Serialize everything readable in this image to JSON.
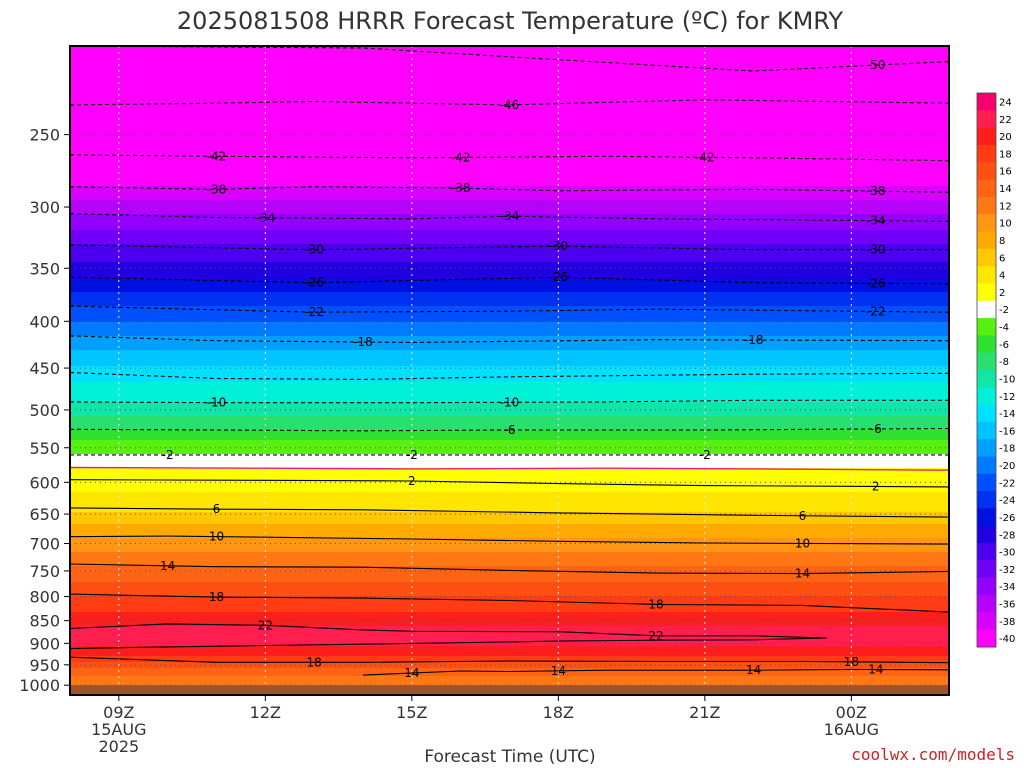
{
  "chart_data": {
    "type": "contour",
    "title": "2025081508 HRRR Forecast Temperature (ºC) for KMRY",
    "xlabel": "Forecast Time (UTC)",
    "x_ticks": [
      {
        "hour": 9,
        "lines": [
          "09Z",
          "15AUG",
          "2025"
        ]
      },
      {
        "hour": 12,
        "lines": [
          "12Z"
        ]
      },
      {
        "hour": 15,
        "lines": [
          "15Z"
        ]
      },
      {
        "hour": 18,
        "lines": [
          "18Z"
        ]
      },
      {
        "hour": 21,
        "lines": [
          "21Z"
        ]
      },
      {
        "hour": 24,
        "lines": [
          "00Z",
          "16AUG"
        ]
      }
    ],
    "xlim_hours": [
      8,
      26
    ],
    "y_ticks": [
      250,
      300,
      350,
      400,
      450,
      500,
      550,
      600,
      650,
      700,
      750,
      800,
      850,
      900,
      950,
      1000
    ],
    "ylim_hpa": [
      200,
      1025
    ],
    "y_scale": "log-pressure",
    "surface_pressure_hpa": 1000,
    "surface_color": "#a0522d",
    "colorbar": {
      "labels": [
        24,
        22,
        20,
        18,
        16,
        14,
        12,
        10,
        8,
        6,
        4,
        2,
        -2,
        -4,
        -6,
        -8,
        -10,
        -12,
        -14,
        -16,
        -18,
        -20,
        -22,
        -24,
        -26,
        -28,
        -30,
        -32,
        -34,
        -36,
        -38,
        -40
      ],
      "colors": [
        "#f5006e",
        "#ff1e50",
        "#ff1e1e",
        "#ff3c14",
        "#ff5014",
        "#ff6414",
        "#ff7814",
        "#ff9614",
        "#ffaa00",
        "#ffc800",
        "#ffe600",
        "#ffff00",
        "#ffffff",
        "#58f010",
        "#30e030",
        "#28e070",
        "#10e6a8",
        "#00f0d8",
        "#00e0ff",
        "#00c4ff",
        "#00a0ff",
        "#007aff",
        "#0050ff",
        "#0030f0",
        "#0010e0",
        "#2000e0",
        "#4c00ee",
        "#7000f8",
        "#9400ff",
        "#b800ff",
        "#d800ff",
        "#ff00ff"
      ]
    },
    "temperature_profile": [
      {
        "p": 200,
        "t": -54
      },
      {
        "p": 215,
        "t": -50
      },
      {
        "p": 232,
        "t": -46
      },
      {
        "p": 263,
        "t": -42
      },
      {
        "p": 285,
        "t": -38
      },
      {
        "p": 305,
        "t": -34
      },
      {
        "p": 330,
        "t": -30
      },
      {
        "p": 360,
        "t": -26
      },
      {
        "p": 385,
        "t": -22
      },
      {
        "p": 415,
        "t": -18
      },
      {
        "p": 455,
        "t": -13
      },
      {
        "p": 490,
        "t": -10
      },
      {
        "p": 525,
        "t": -6
      },
      {
        "p": 548,
        "t": -3
      },
      {
        "p": 560,
        "t": -2
      },
      {
        "p": 580,
        "t": 2
      },
      {
        "p": 590,
        "t": 2
      },
      {
        "p": 625,
        "t": 5
      },
      {
        "p": 645,
        "t": 6
      },
      {
        "p": 690,
        "t": 10
      },
      {
        "p": 740,
        "t": 14
      },
      {
        "p": 800,
        "t": 18
      },
      {
        "p": 860,
        "t": 22
      },
      {
        "p": 895,
        "t": 23
      },
      {
        "p": 920,
        "t": 21
      },
      {
        "p": 945,
        "t": 18
      },
      {
        "p": 965,
        "t": 15
      },
      {
        "p": 985,
        "t": 13
      },
      {
        "p": 1000,
        "t": 12
      }
    ],
    "contours": [
      {
        "label": "-50",
        "style": "dashed",
        "pts": [
          [
            8,
            200
          ],
          [
            14,
            201
          ],
          [
            18,
            207
          ],
          [
            22,
            213
          ],
          [
            26,
            208
          ]
        ],
        "labels_at": [
          24.5
        ]
      },
      {
        "label": "-46",
        "style": "dashed",
        "pts": [
          [
            8,
            232
          ],
          [
            11,
            231
          ],
          [
            13,
            230
          ],
          [
            17,
            232
          ],
          [
            21,
            229
          ],
          [
            26,
            231
          ]
        ],
        "labels_at": [
          17
        ]
      },
      {
        "label": "-42",
        "style": "dashed",
        "pts": [
          [
            8,
            263
          ],
          [
            11,
            264
          ],
          [
            15,
            265
          ],
          [
            19,
            264
          ],
          [
            22,
            265
          ],
          [
            26,
            267
          ]
        ],
        "labels_at": [
          11,
          16,
          21
        ]
      },
      {
        "label": "-38",
        "style": "dashed",
        "pts": [
          [
            8,
            285
          ],
          [
            11,
            287
          ],
          [
            13,
            285
          ],
          [
            16,
            286
          ],
          [
            18,
            288
          ],
          [
            22,
            287
          ],
          [
            26,
            289
          ]
        ],
        "labels_at": [
          11,
          16,
          24.5
        ]
      },
      {
        "label": "-34",
        "style": "dashed",
        "pts": [
          [
            8,
            305
          ],
          [
            11,
            308
          ],
          [
            15,
            309
          ],
          [
            17,
            307
          ],
          [
            20,
            309
          ],
          [
            26,
            311
          ]
        ],
        "labels_at": [
          12,
          17,
          24.5
        ]
      },
      {
        "label": "-30",
        "style": "dashed",
        "pts": [
          [
            8,
            330
          ],
          [
            13,
            334
          ],
          [
            18,
            331
          ],
          [
            22,
            334
          ],
          [
            26,
            334
          ]
        ],
        "labels_at": [
          13,
          18,
          24.5
        ]
      },
      {
        "label": "-26",
        "style": "dashed",
        "pts": [
          [
            8,
            358
          ],
          [
            13,
            363
          ],
          [
            18,
            358
          ],
          [
            22,
            363
          ],
          [
            26,
            364
          ]
        ],
        "labels_at": [
          13,
          18,
          24.5
        ]
      },
      {
        "label": "-22",
        "style": "dashed",
        "pts": [
          [
            8,
            385
          ],
          [
            13,
            391
          ],
          [
            17,
            390
          ],
          [
            20,
            388
          ],
          [
            26,
            391
          ]
        ],
        "labels_at": [
          13,
          24.5
        ]
      },
      {
        "label": "-18",
        "style": "dashed",
        "pts": [
          [
            8,
            415
          ],
          [
            11,
            420
          ],
          [
            15,
            422
          ],
          [
            20,
            419
          ],
          [
            26,
            420
          ]
        ],
        "labels_at": [
          14,
          22
        ]
      },
      {
        "label": "-13",
        "style": "dashed",
        "pts": [
          [
            8,
            455
          ],
          [
            11,
            462
          ],
          [
            14,
            463
          ],
          [
            17,
            460
          ],
          [
            22,
            457
          ],
          [
            26,
            456
          ]
        ],
        "labels_at": []
      },
      {
        "label": "-10",
        "style": "dashed",
        "pts": [
          [
            8,
            490
          ],
          [
            11,
            491
          ],
          [
            15,
            491
          ],
          [
            19,
            490
          ],
          [
            22,
            488
          ],
          [
            26,
            488
          ]
        ],
        "labels_at": [
          11,
          17
        ]
      },
      {
        "label": "-6",
        "style": "dashed",
        "pts": [
          [
            8,
            525
          ],
          [
            11,
            526
          ],
          [
            14,
            527
          ],
          [
            17,
            526
          ],
          [
            21,
            526
          ],
          [
            26,
            524
          ]
        ],
        "labels_at": [
          17,
          24.5
        ]
      },
      {
        "label": "-2",
        "style": "dashed",
        "pts": [
          [
            8,
            560
          ],
          [
            26,
            560
          ]
        ],
        "labels_at": [
          10,
          15,
          21
        ]
      },
      {
        "label": "0",
        "style": "magenta",
        "pts": [
          [
            8,
            578
          ],
          [
            12,
            579
          ],
          [
            15,
            580
          ],
          [
            19,
            579
          ],
          [
            22,
            580
          ],
          [
            26,
            582
          ]
        ],
        "labels_at": []
      },
      {
        "label": "2",
        "style": "solid",
        "pts": [
          [
            8,
            596
          ],
          [
            12,
            597
          ],
          [
            15,
            598
          ],
          [
            18,
            602
          ],
          [
            21,
            605
          ],
          [
            24,
            606
          ],
          [
            26,
            607
          ]
        ],
        "labels_at": [
          15,
          24.5
        ]
      },
      {
        "label": "6",
        "style": "solid",
        "pts": [
          [
            8,
            640
          ],
          [
            11,
            642
          ],
          [
            14,
            643
          ],
          [
            18,
            648
          ],
          [
            22,
            652
          ],
          [
            26,
            655
          ]
        ],
        "labels_at": [
          11,
          23
        ]
      },
      {
        "label": "10",
        "style": "solid",
        "pts": [
          [
            8,
            688
          ],
          [
            10,
            687
          ],
          [
            12,
            689
          ],
          [
            15,
            692
          ],
          [
            18,
            696
          ],
          [
            21,
            699
          ],
          [
            26,
            701
          ]
        ],
        "labels_at": [
          11,
          23
        ]
      },
      {
        "label": "14",
        "style": "solid",
        "pts": [
          [
            8,
            737
          ],
          [
            11,
            742
          ],
          [
            14,
            743
          ],
          [
            17,
            749
          ],
          [
            20,
            754
          ],
          [
            23,
            755
          ],
          [
            26,
            751
          ]
        ],
        "labels_at": [
          10,
          23
        ]
      },
      {
        "label": "18",
        "style": "solid",
        "pts": [
          [
            8,
            795
          ],
          [
            11,
            801
          ],
          [
            14,
            803
          ],
          [
            17,
            808
          ],
          [
            20,
            816
          ],
          [
            23,
            818
          ],
          [
            26,
            832
          ]
        ],
        "labels_at": [
          11,
          20
        ]
      },
      {
        "label": "22",
        "style": "solid",
        "pts": [
          [
            8,
            867
          ],
          [
            10,
            857
          ],
          [
            12,
            860
          ],
          [
            14,
            870
          ],
          [
            15,
            873
          ],
          [
            18,
            874
          ],
          [
            20,
            883
          ],
          [
            22,
            883
          ],
          [
            23.5,
            888
          ],
          [
            22,
            892
          ],
          [
            20,
            893
          ],
          [
            18,
            895
          ],
          [
            14,
            902
          ],
          [
            12,
            905
          ],
          [
            10,
            908
          ],
          [
            8,
            912
          ]
        ],
        "labels_at": [
          12,
          20
        ]
      },
      {
        "label": "18",
        "style": "solid",
        "pts": [
          [
            8,
            932
          ],
          [
            11,
            944
          ],
          [
            14,
            944
          ],
          [
            17,
            941
          ],
          [
            20,
            942
          ],
          [
            23,
            942
          ],
          [
            26,
            945
          ]
        ],
        "labels_at": [
          13,
          24
        ]
      },
      {
        "label": "14",
        "style": "solid",
        "pts": [
          [
            14,
            975
          ],
          [
            16,
            965
          ],
          [
            17,
            966
          ],
          [
            19,
            963
          ],
          [
            22,
            963
          ],
          [
            24,
            961
          ],
          [
            26,
            962
          ]
        ],
        "labels_at": [
          15,
          18,
          22,
          24.5
        ]
      }
    ],
    "credit": "coolwx.com/models"
  }
}
